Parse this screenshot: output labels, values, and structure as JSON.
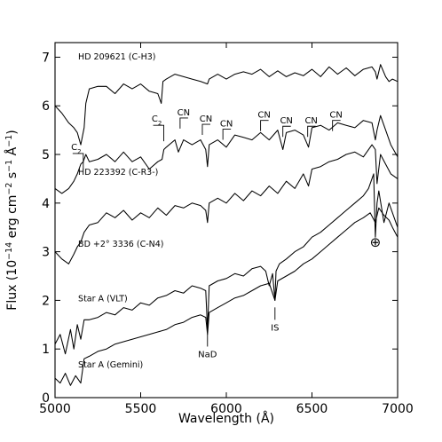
{
  "chart_data": {
    "type": "line",
    "title": "",
    "xlabel": "Wavelength (Å)",
    "ylabel": "Flux (10^-14 erg cm^-2 s^-1 Å^-1)",
    "xlim": [
      5000,
      7000
    ],
    "ylim": [
      0,
      7.3
    ],
    "xticks": [
      "5000",
      "5500",
      "6000",
      "6500",
      "7000"
    ],
    "yticks": [
      "0",
      "1",
      "2",
      "3",
      "4",
      "5",
      "6",
      "7"
    ],
    "grid": false,
    "series": [
      {
        "name": "HD 209621 (C-H3)",
        "x": [
          5000,
          5040,
          5080,
          5110,
          5130,
          5150,
          5170,
          5180,
          5200,
          5250,
          5300,
          5350,
          5400,
          5450,
          5500,
          5550,
          5600,
          5620,
          5630,
          5650,
          5700,
          5750,
          5800,
          5850,
          5890,
          5900,
          5950,
          6000,
          6050,
          6100,
          6150,
          6200,
          6250,
          6300,
          6350,
          6400,
          6450,
          6500,
          6550,
          6600,
          6650,
          6700,
          6750,
          6800,
          6850,
          6870,
          6880,
          6900,
          6930,
          6950,
          6970,
          7000
        ],
        "y": [
          6.0,
          5.85,
          5.65,
          5.55,
          5.45,
          5.2,
          5.55,
          6.05,
          6.35,
          6.4,
          6.4,
          6.25,
          6.45,
          6.35,
          6.45,
          6.3,
          6.25,
          6.05,
          6.5,
          6.55,
          6.65,
          6.6,
          6.55,
          6.5,
          6.45,
          6.55,
          6.65,
          6.55,
          6.65,
          6.7,
          6.65,
          6.75,
          6.6,
          6.72,
          6.6,
          6.68,
          6.62,
          6.75,
          6.6,
          6.8,
          6.65,
          6.78,
          6.62,
          6.75,
          6.8,
          6.7,
          6.55,
          6.85,
          6.6,
          6.5,
          6.55,
          6.5
        ]
      },
      {
        "name": "HD 223392 (C-R3-)",
        "x": [
          5000,
          5040,
          5080,
          5110,
          5130,
          5150,
          5165,
          5180,
          5200,
          5250,
          5300,
          5350,
          5400,
          5450,
          5500,
          5550,
          5600,
          5625,
          5635,
          5650,
          5700,
          5720,
          5750,
          5800,
          5850,
          5880,
          5890,
          5900,
          5950,
          6000,
          6050,
          6100,
          6150,
          6200,
          6250,
          6300,
          6330,
          6350,
          6400,
          6450,
          6480,
          6500,
          6550,
          6600,
          6650,
          6700,
          6750,
          6800,
          6850,
          6870,
          6880,
          6900,
          6930,
          6960,
          7000
        ],
        "y": [
          4.3,
          4.2,
          4.3,
          4.45,
          4.6,
          4.8,
          4.85,
          5.0,
          4.85,
          4.9,
          5.0,
          4.85,
          5.05,
          4.85,
          4.95,
          4.7,
          4.85,
          4.9,
          5.1,
          5.15,
          5.3,
          5.05,
          5.3,
          5.2,
          5.3,
          5.1,
          4.75,
          5.2,
          5.3,
          5.15,
          5.4,
          5.35,
          5.3,
          5.45,
          5.3,
          5.5,
          5.1,
          5.45,
          5.5,
          5.4,
          5.15,
          5.55,
          5.6,
          5.5,
          5.65,
          5.6,
          5.55,
          5.7,
          5.65,
          5.3,
          5.5,
          5.8,
          5.5,
          5.2,
          4.95
        ]
      },
      {
        "name": "BD +2° 3336 (C-N4)",
        "x": [
          5000,
          5040,
          5080,
          5110,
          5130,
          5150,
          5170,
          5200,
          5250,
          5300,
          5350,
          5400,
          5450,
          5500,
          5550,
          5600,
          5650,
          5700,
          5750,
          5800,
          5850,
          5880,
          5890,
          5900,
          5950,
          6000,
          6050,
          6100,
          6150,
          6200,
          6250,
          6300,
          6350,
          6400,
          6450,
          6480,
          6500,
          6550,
          6600,
          6650,
          6700,
          6750,
          6800,
          6850,
          6870,
          6880,
          6900,
          6930,
          6960,
          7000
        ],
        "y": [
          3.0,
          2.85,
          2.75,
          2.95,
          3.1,
          3.2,
          3.4,
          3.55,
          3.6,
          3.8,
          3.7,
          3.85,
          3.65,
          3.8,
          3.7,
          3.9,
          3.75,
          3.95,
          3.9,
          4.0,
          3.95,
          3.85,
          3.6,
          4.0,
          4.1,
          4.0,
          4.2,
          4.05,
          4.25,
          4.15,
          4.35,
          4.2,
          4.45,
          4.3,
          4.6,
          4.35,
          4.7,
          4.75,
          4.85,
          4.9,
          5.0,
          5.05,
          4.95,
          5.2,
          5.1,
          4.4,
          5.0,
          4.8,
          4.6,
          4.5
        ]
      },
      {
        "name": "Star A (VLT)",
        "x": [
          5000,
          5030,
          5060,
          5090,
          5110,
          5130,
          5150,
          5170,
          5200,
          5250,
          5300,
          5350,
          5400,
          5450,
          5500,
          5550,
          5600,
          5650,
          5700,
          5750,
          5800,
          5850,
          5880,
          5890,
          5900,
          5950,
          6000,
          6050,
          6100,
          6150,
          6200,
          6230,
          6250,
          6270,
          6284,
          6290,
          6310,
          6350,
          6400,
          6450,
          6500,
          6550,
          6600,
          6650,
          6700,
          6750,
          6800,
          6830,
          6860,
          6870,
          6880,
          6890,
          6920,
          6950,
          6970,
          7000
        ],
        "y": [
          1.1,
          1.3,
          0.9,
          1.4,
          1.0,
          1.5,
          1.2,
          1.6,
          1.6,
          1.65,
          1.75,
          1.7,
          1.85,
          1.8,
          1.95,
          1.9,
          2.05,
          2.1,
          2.2,
          2.15,
          2.3,
          2.25,
          2.2,
          1.4,
          2.3,
          2.4,
          2.45,
          2.55,
          2.5,
          2.65,
          2.7,
          2.6,
          2.3,
          2.55,
          2.0,
          2.6,
          2.75,
          2.85,
          3.0,
          3.1,
          3.3,
          3.4,
          3.55,
          3.7,
          3.85,
          4.0,
          4.15,
          4.3,
          4.6,
          3.3,
          4.0,
          4.25,
          3.6,
          4.0,
          3.8,
          3.5
        ]
      },
      {
        "name": "Star A (Gemini)",
        "x": [
          5000,
          5030,
          5060,
          5090,
          5120,
          5150,
          5170,
          5200,
          5250,
          5300,
          5350,
          5400,
          5450,
          5500,
          5550,
          5600,
          5650,
          5700,
          5750,
          5800,
          5850,
          5880,
          5890,
          5900,
          5950,
          6000,
          6050,
          6100,
          6150,
          6200,
          6250,
          6284,
          6300,
          6350,
          6400,
          6450,
          6500,
          6550,
          6600,
          6650,
          6700,
          6750,
          6800,
          6840,
          6870,
          6890,
          6920,
          6950,
          6970,
          7000
        ],
        "y": [
          0.4,
          0.3,
          0.5,
          0.25,
          0.45,
          0.3,
          0.8,
          0.85,
          0.95,
          1.0,
          1.1,
          1.15,
          1.2,
          1.25,
          1.3,
          1.35,
          1.4,
          1.5,
          1.55,
          1.65,
          1.7,
          1.65,
          1.3,
          1.75,
          1.85,
          1.95,
          2.05,
          2.1,
          2.2,
          2.3,
          2.35,
          2.0,
          2.4,
          2.5,
          2.6,
          2.75,
          2.85,
          3.0,
          3.15,
          3.3,
          3.45,
          3.6,
          3.7,
          3.8,
          3.6,
          3.9,
          3.75,
          3.65,
          3.5,
          3.3
        ]
      }
    ],
    "series_labels": [
      {
        "text": "HD 209621 (C-H3)",
        "x": 5135,
        "y": 6.95
      },
      {
        "text": "HD 223392 (C-R3-)",
        "x": 5135,
        "y": 4.58
      },
      {
        "text": "BD +2° 3336 (C-N4)",
        "x": 5135,
        "y": 3.1
      },
      {
        "text": "Star A (VLT)",
        "x": 5135,
        "y": 1.98
      },
      {
        "text": "Star A (Gemini)",
        "x": 5135,
        "y": 0.62
      }
    ],
    "annotations": [
      {
        "label": "C2",
        "x": 5165,
        "y": 5.02,
        "style": "bracket-left"
      },
      {
        "label": "C2",
        "x": 5635,
        "y": 5.6,
        "style": "bracket-left"
      },
      {
        "label": "CN",
        "x": 5730,
        "y": 5.75,
        "style": "bracket-right"
      },
      {
        "label": "CN",
        "x": 5860,
        "y": 5.62,
        "style": "bracket-right"
      },
      {
        "label": "CN",
        "x": 5980,
        "y": 5.52,
        "style": "bracket-right"
      },
      {
        "label": "CN",
        "x": 6200,
        "y": 5.7,
        "style": "bracket-right"
      },
      {
        "label": "CN",
        "x": 6330,
        "y": 5.58,
        "style": "bracket-right"
      },
      {
        "label": "CN",
        "x": 6475,
        "y": 5.58,
        "style": "bracket-right"
      },
      {
        "label": "CN",
        "x": 6620,
        "y": 5.7,
        "style": "bracket-right"
      },
      {
        "label": "NaD",
        "x": 5890,
        "y": 1.05,
        "style": "tick-below"
      },
      {
        "label": "IS",
        "x": 6284,
        "y": 1.6,
        "style": "tick-below"
      },
      {
        "label": "⊕",
        "x": 6870,
        "y": 3.1,
        "style": "symbol"
      }
    ]
  }
}
